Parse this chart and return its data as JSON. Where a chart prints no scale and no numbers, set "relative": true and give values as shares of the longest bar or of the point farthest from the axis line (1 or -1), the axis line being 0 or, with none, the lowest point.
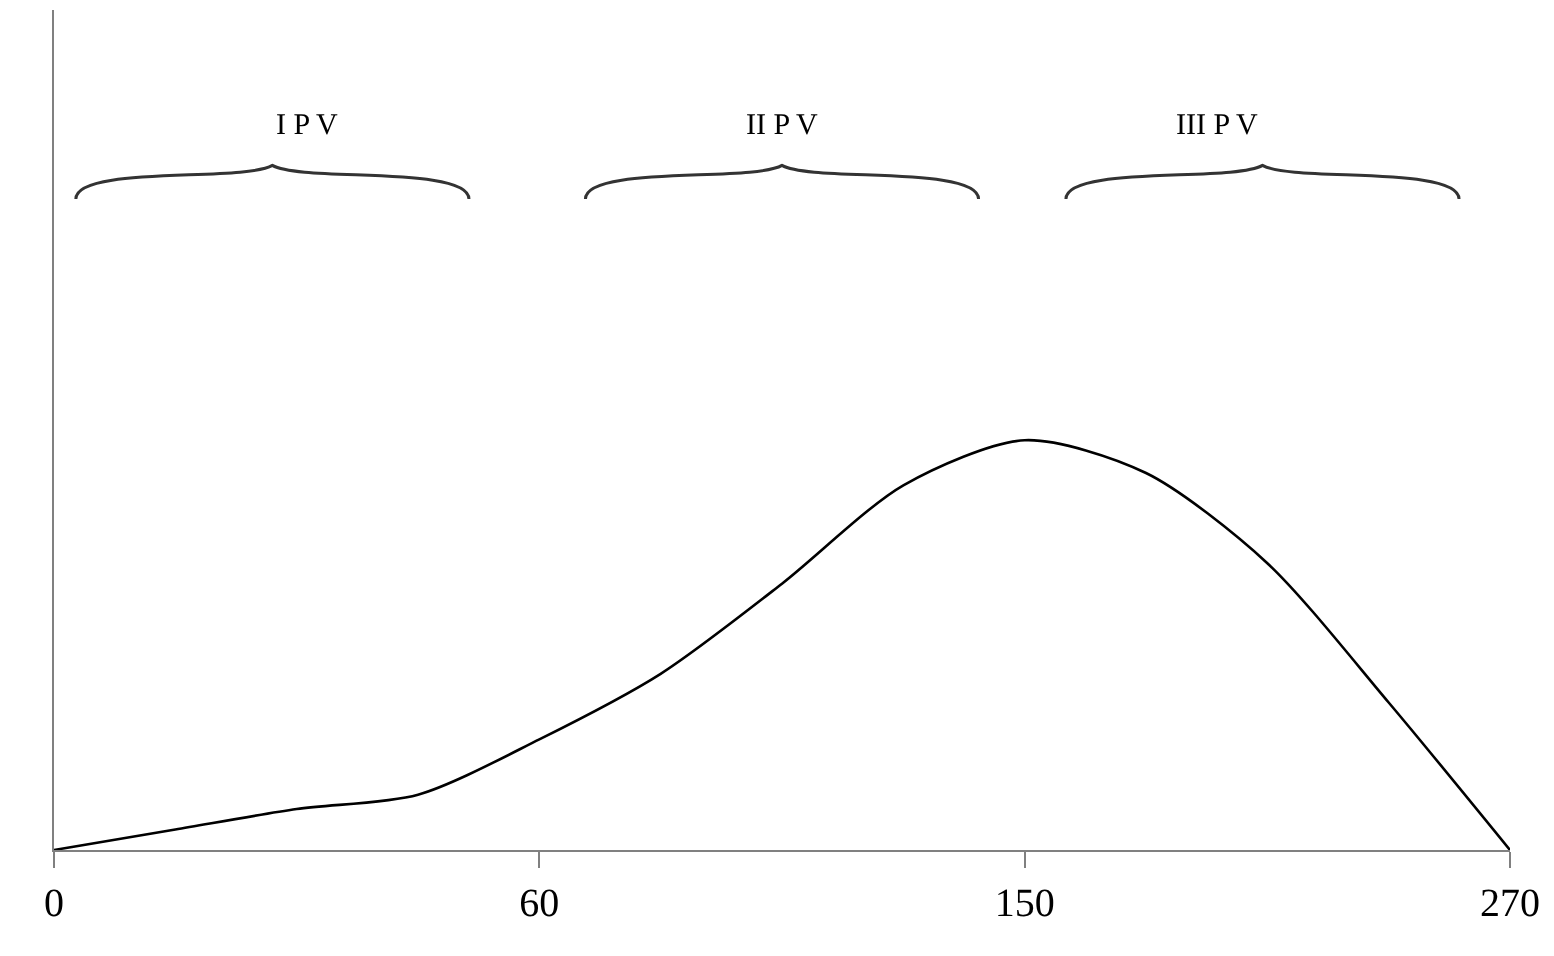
{
  "chart_data": {
    "type": "line",
    "relative": true,
    "categories": [
      "0",
      null,
      null,
      null,
      "60",
      null,
      null,
      null,
      "150",
      null,
      null,
      null,
      "270"
    ],
    "series": [
      {
        "color": "#000000",
        "values": [
          0,
          0.05,
          0.1,
          0.135,
          0.27,
          0.43,
          0.65,
          0.89,
          1,
          0.92,
          0.7,
          0.36,
          0
        ]
      }
    ],
    "annotations": [
      "I P V",
      "II P V",
      "III P V"
    ],
    "marker": "none",
    "line_style": "solid"
  }
}
